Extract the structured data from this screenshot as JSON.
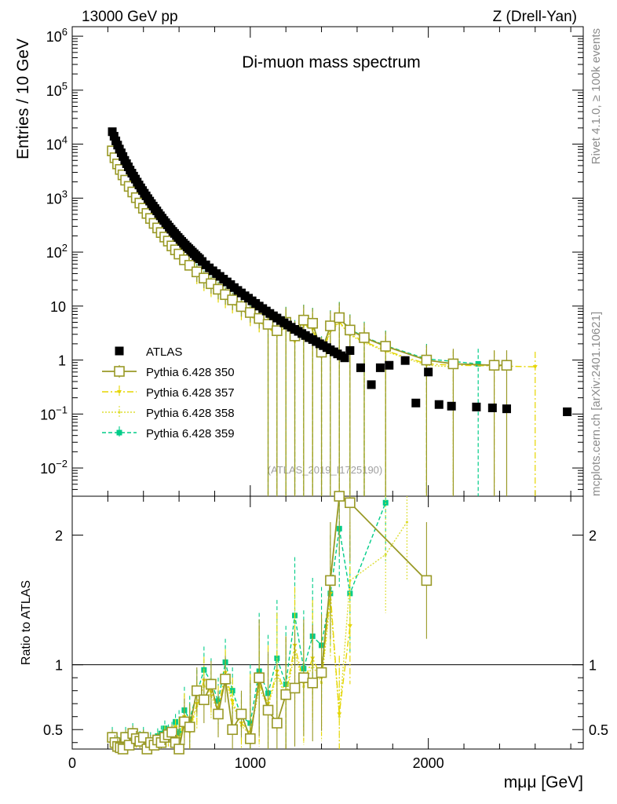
{
  "header": {
    "left": "13000 GeV pp",
    "right": "Z (Drell-Yan)"
  },
  "side_labels": {
    "rivet": "Rivet 4.1.0, ≥ 100k events",
    "mcplots": "mcplots.cern.ch [arXiv:2401.10621]"
  },
  "chart_data": {
    "type": "scatter",
    "title": "Di-muon mass spectrum",
    "xlabel": "mμμ [GeV]",
    "ylabel": "Entries / 10 GeV",
    "ratio_ylabel": "Ratio to ATLAS",
    "analysis_tag": "(ATLAS_2019_I1725190)",
    "xlim": [
      0,
      2870
    ],
    "ylim": [
      0.003,
      1500000
    ],
    "ratio_ylim": [
      0.35,
      2.3
    ],
    "x_ticks": [
      "0",
      "1000",
      "2000"
    ],
    "y_ticks": [
      "10^-2",
      "10^-1",
      "1",
      "10",
      "10^2",
      "10^3",
      "10^4",
      "10^5",
      "10^6"
    ],
    "ratio_ticks": [
      "0.5",
      "1",
      "2"
    ],
    "legend": {
      "placement": "lower-left",
      "entries": [
        "ATLAS",
        "Pythia 6.428 350",
        "Pythia 6.428 357",
        "Pythia 6.428 358",
        "Pythia 6.428 359"
      ]
    },
    "series": [
      {
        "name": "ATLAS",
        "color": "#000000",
        "style": "square-marker",
        "x": [
          225,
          235,
          245,
          255,
          265,
          275,
          285,
          295,
          305,
          315,
          325,
          335,
          345,
          355,
          365,
          375,
          385,
          395,
          405,
          415,
          425,
          435,
          445,
          455,
          465,
          475,
          485,
          495,
          505,
          515,
          525,
          535,
          545,
          555,
          565,
          575,
          585,
          595,
          605,
          615,
          625,
          635,
          645,
          655,
          665,
          675,
          685,
          695,
          705,
          715,
          730,
          750,
          770,
          790,
          810,
          830,
          850,
          870,
          890,
          910,
          930,
          950,
          970,
          990,
          1010,
          1030,
          1050,
          1070,
          1090,
          1110,
          1130,
          1150,
          1170,
          1190,
          1210,
          1230,
          1250,
          1270,
          1290,
          1310,
          1330,
          1350,
          1370,
          1390,
          1410,
          1430,
          1450,
          1470,
          1490,
          1510,
          1530,
          1560,
          1620,
          1680,
          1730,
          1780,
          1870,
          1930,
          2000,
          2060,
          2130,
          2270,
          2360,
          2440,
          2780
        ],
        "y": [
          17000,
          14000,
          11500,
          9600,
          8100,
          6900,
          5900,
          5000,
          4350,
          3800,
          3300,
          2900,
          2550,
          2250,
          1980,
          1750,
          1550,
          1380,
          1230,
          1100,
          980,
          880,
          790,
          710,
          640,
          580,
          520,
          470,
          425,
          385,
          350,
          320,
          290,
          265,
          242,
          222,
          204,
          187,
          172,
          158,
          146,
          135,
          125,
          116,
          108,
          100,
          93,
          86,
          80,
          75,
          67,
          58,
          51,
          45,
          40,
          35.5,
          31.5,
          28,
          25,
          22,
          19.5,
          17.5,
          15.5,
          14,
          12.5,
          11.2,
          10,
          9,
          8.1,
          7.3,
          6.6,
          6,
          5.4,
          4.9,
          4.45,
          4.05,
          3.7,
          3.4,
          3.1,
          2.85,
          2.6,
          2.4,
          2.2,
          2.0,
          1.85,
          1.7,
          1.55,
          1.42,
          1.3,
          1.2,
          1.1,
          1.5,
          0.72,
          0.35,
          0.72,
          0.8,
          0.98,
          0.16,
          0.6,
          0.15,
          0.14,
          0.135,
          0.13,
          0.125,
          0.11
        ]
      },
      {
        "name": "Pythia 6.428 350",
        "color": "#999926",
        "style": "solid-open-square",
        "x": [
          225,
          240,
          255,
          270,
          285,
          300,
          320,
          340,
          360,
          380,
          400,
          420,
          440,
          460,
          480,
          500,
          520,
          540,
          560,
          580,
          600,
          630,
          660,
          700,
          740,
          780,
          820,
          860,
          900,
          950,
          1000,
          1050,
          1100,
          1150,
          1200,
          1250,
          1300,
          1350,
          1400,
          1450,
          1500,
          1560,
          1640,
          1760,
          1990,
          2140,
          2370,
          2440
        ],
        "y": [
          7500,
          5600,
          4300,
          3400,
          2700,
          2150,
          1650,
          1300,
          1020,
          810,
          650,
          520,
          420,
          340,
          280,
          230,
          190,
          160,
          130,
          110,
          92,
          72,
          57,
          43,
          33,
          26,
          20.5,
          16.3,
          13,
          9.8,
          7.6,
          5.9,
          4.6,
          3.5,
          5.0,
          2.8,
          5.5,
          4.8,
          1.4,
          4.3,
          6.1,
          3.6,
          2.6,
          1.8,
          1.0,
          0.85,
          0.8,
          0.8
        ]
      },
      {
        "name": "Pythia 6.428 357",
        "color": "#e6d600",
        "style": "dashdot-triangle",
        "x": [
          225,
          240,
          255,
          270,
          285,
          300,
          320,
          340,
          360,
          380,
          400,
          420,
          440,
          460,
          480,
          500,
          520,
          540,
          560,
          580,
          600,
          630,
          660,
          700,
          740,
          780,
          820,
          860,
          900,
          950,
          1000,
          1050,
          1100,
          1150,
          1200,
          1250,
          1300,
          1350,
          1400,
          1450,
          1500,
          1560,
          1640,
          1760,
          1990,
          2140,
          2370,
          2600
        ],
        "y": [
          7200,
          5300,
          4100,
          3200,
          2550,
          2000,
          1550,
          1220,
          960,
          760,
          610,
          490,
          395,
          320,
          262,
          215,
          178,
          148,
          124,
          104,
          86,
          66,
          52,
          40,
          30,
          23.5,
          18.5,
          14.5,
          11.5,
          8.7,
          6.7,
          5.1,
          4.0,
          3.0,
          4.5,
          2.3,
          4.6,
          3.9,
          1.2,
          3.6,
          5.1,
          3.0,
          2.2,
          1.5,
          0.85,
          0.8,
          0.78,
          0.75
        ]
      },
      {
        "name": "Pythia 6.428 358",
        "color": "#dddd33",
        "style": "dotted-dot",
        "x": [
          225,
          240,
          255,
          270,
          285,
          300,
          320,
          340,
          360,
          380,
          400,
          420,
          440,
          460,
          480,
          500,
          520,
          540,
          560,
          580,
          600,
          630,
          660,
          700,
          740,
          780,
          820,
          860,
          900,
          950,
          1000,
          1050,
          1100,
          1150,
          1200,
          1250,
          1300,
          1350,
          1400,
          1450,
          1500,
          1560,
          1640,
          1760,
          1990,
          2140
        ],
        "y": [
          7000,
          5200,
          4000,
          3150,
          2500,
          1950,
          1500,
          1180,
          930,
          740,
          590,
          475,
          385,
          310,
          255,
          208,
          172,
          143,
          120,
          100,
          84,
          65,
          51,
          39,
          29,
          22.5,
          17.8,
          14,
          11.2,
          8.4,
          6.5,
          5.0,
          3.9,
          2.9,
          4.2,
          2.2,
          4.4,
          3.7,
          1.15,
          3.4,
          4.9,
          2.9,
          2.1,
          1.45,
          0.8,
          0.75
        ]
      },
      {
        "name": "Pythia 6.428 359",
        "color": "#00cc88",
        "style": "dashed-filled-square",
        "x": [
          225,
          240,
          255,
          270,
          285,
          300,
          320,
          340,
          360,
          380,
          400,
          420,
          440,
          460,
          480,
          500,
          520,
          540,
          560,
          580,
          600,
          630,
          660,
          700,
          740,
          780,
          820,
          860,
          900,
          950,
          1000,
          1050,
          1100,
          1150,
          1200,
          1250,
          1300,
          1350,
          1400,
          1450,
          1500,
          1560,
          1640,
          1760,
          1990,
          2280
        ],
        "y": [
          7800,
          5800,
          4500,
          3500,
          2800,
          2200,
          1700,
          1330,
          1050,
          830,
          670,
          535,
          430,
          350,
          288,
          236,
          196,
          164,
          137,
          114,
          95,
          74,
          58,
          45,
          34,
          26.5,
          21,
          16.6,
          13.2,
          10,
          7.8,
          6.0,
          4.7,
          3.6,
          5.1,
          2.9,
          5.6,
          4.9,
          1.45,
          4.4,
          6.3,
          3.7,
          2.7,
          1.85,
          1.05,
          0.85
        ]
      }
    ],
    "ratio_series": [
      {
        "name": "Pythia 6.428 350",
        "x": [
          225,
          240,
          255,
          270,
          285,
          300,
          320,
          340,
          360,
          380,
          400,
          420,
          440,
          460,
          480,
          500,
          520,
          540,
          560,
          580,
          600,
          630,
          660,
          700,
          740,
          780,
          820,
          860,
          900,
          950,
          1000,
          1050,
          1100,
          1150,
          1200,
          1250,
          1300,
          1350,
          1400,
          1450,
          1500,
          1560,
          1990
        ],
        "y": [
          0.44,
          0.4,
          0.37,
          0.36,
          0.35,
          0.44,
          0.38,
          0.47,
          0.43,
          0.41,
          0.44,
          0.35,
          0.4,
          0.38,
          0.42,
          0.4,
          0.44,
          0.46,
          0.48,
          0.4,
          0.35,
          0.56,
          0.52,
          0.8,
          0.73,
          0.85,
          0.62,
          0.89,
          0.5,
          0.62,
          0.43,
          0.9,
          0.65,
          0.55,
          0.77,
          0.82,
          0.9,
          0.86,
          0.94,
          1.65,
          2.3,
          2.25,
          1.65
        ]
      },
      {
        "name": "Pythia 6.428 357",
        "x": [
          225,
          240,
          255,
          270,
          285,
          300,
          320,
          340,
          360,
          380,
          400,
          420,
          440,
          460,
          480,
          500,
          520,
          540,
          560,
          580,
          600,
          630,
          660,
          700,
          740,
          780,
          820,
          860,
          900,
          950,
          1000,
          1050,
          1100,
          1150,
          1200,
          1250,
          1300,
          1350,
          1400,
          1450,
          1500,
          1560
        ],
        "y": [
          0.42,
          0.38,
          0.36,
          0.34,
          0.35,
          0.41,
          0.37,
          0.45,
          0.42,
          0.39,
          0.43,
          0.36,
          0.38,
          0.37,
          0.41,
          0.42,
          0.47,
          0.43,
          0.45,
          0.52,
          0.41,
          0.6,
          0.5,
          0.7,
          0.88,
          0.79,
          0.66,
          0.94,
          0.72,
          0.55,
          0.48,
          0.85,
          0.7,
          0.95,
          0.77,
          1.15,
          0.86,
          1.05,
          0.9,
          1.55,
          0.62,
          1.3
        ]
      },
      {
        "name": "Pythia 6.428 358",
        "x": [
          225,
          240,
          255,
          270,
          285,
          300,
          320,
          340,
          360,
          380,
          400,
          420,
          440,
          460,
          480,
          500,
          520,
          540,
          560,
          580,
          600,
          630,
          660,
          700,
          740,
          780,
          820,
          860,
          900,
          950,
          1000,
          1050,
          1100,
          1150,
          1200,
          1250,
          1300,
          1350,
          1400,
          1450,
          1500,
          1560,
          1760,
          1880
        ],
        "y": [
          0.4,
          0.37,
          0.35,
          0.33,
          0.34,
          0.4,
          0.36,
          0.44,
          0.41,
          0.38,
          0.42,
          0.35,
          0.37,
          0.36,
          0.4,
          0.41,
          0.46,
          0.42,
          0.44,
          0.5,
          0.4,
          0.58,
          0.48,
          0.68,
          0.84,
          0.76,
          0.64,
          0.9,
          0.7,
          0.53,
          0.46,
          0.82,
          0.68,
          0.92,
          0.74,
          1.1,
          0.83,
          1.0,
          0.86,
          1.5,
          0.6,
          1.65,
          1.85,
          2.1
        ]
      },
      {
        "name": "Pythia 6.428 359",
        "x": [
          225,
          240,
          255,
          270,
          285,
          300,
          320,
          340,
          360,
          380,
          400,
          420,
          440,
          460,
          480,
          500,
          520,
          540,
          560,
          580,
          600,
          630,
          660,
          700,
          740,
          780,
          820,
          860,
          900,
          950,
          1000,
          1050,
          1100,
          1150,
          1200,
          1250,
          1300,
          1350,
          1400,
          1450,
          1500,
          1560,
          1760
        ],
        "y": [
          0.46,
          0.42,
          0.39,
          0.37,
          0.38,
          0.46,
          0.41,
          0.49,
          0.45,
          0.43,
          0.46,
          0.39,
          0.42,
          0.4,
          0.45,
          0.47,
          0.51,
          0.48,
          0.5,
          0.56,
          0.47,
          0.65,
          0.58,
          0.78,
          0.96,
          0.87,
          0.72,
          1.02,
          0.8,
          0.6,
          0.55,
          0.95,
          0.78,
          1.05,
          0.85,
          1.38,
          0.97,
          1.22,
          1.15,
          1.55,
          2.05,
          1.55,
          2.25
        ]
      }
    ]
  }
}
